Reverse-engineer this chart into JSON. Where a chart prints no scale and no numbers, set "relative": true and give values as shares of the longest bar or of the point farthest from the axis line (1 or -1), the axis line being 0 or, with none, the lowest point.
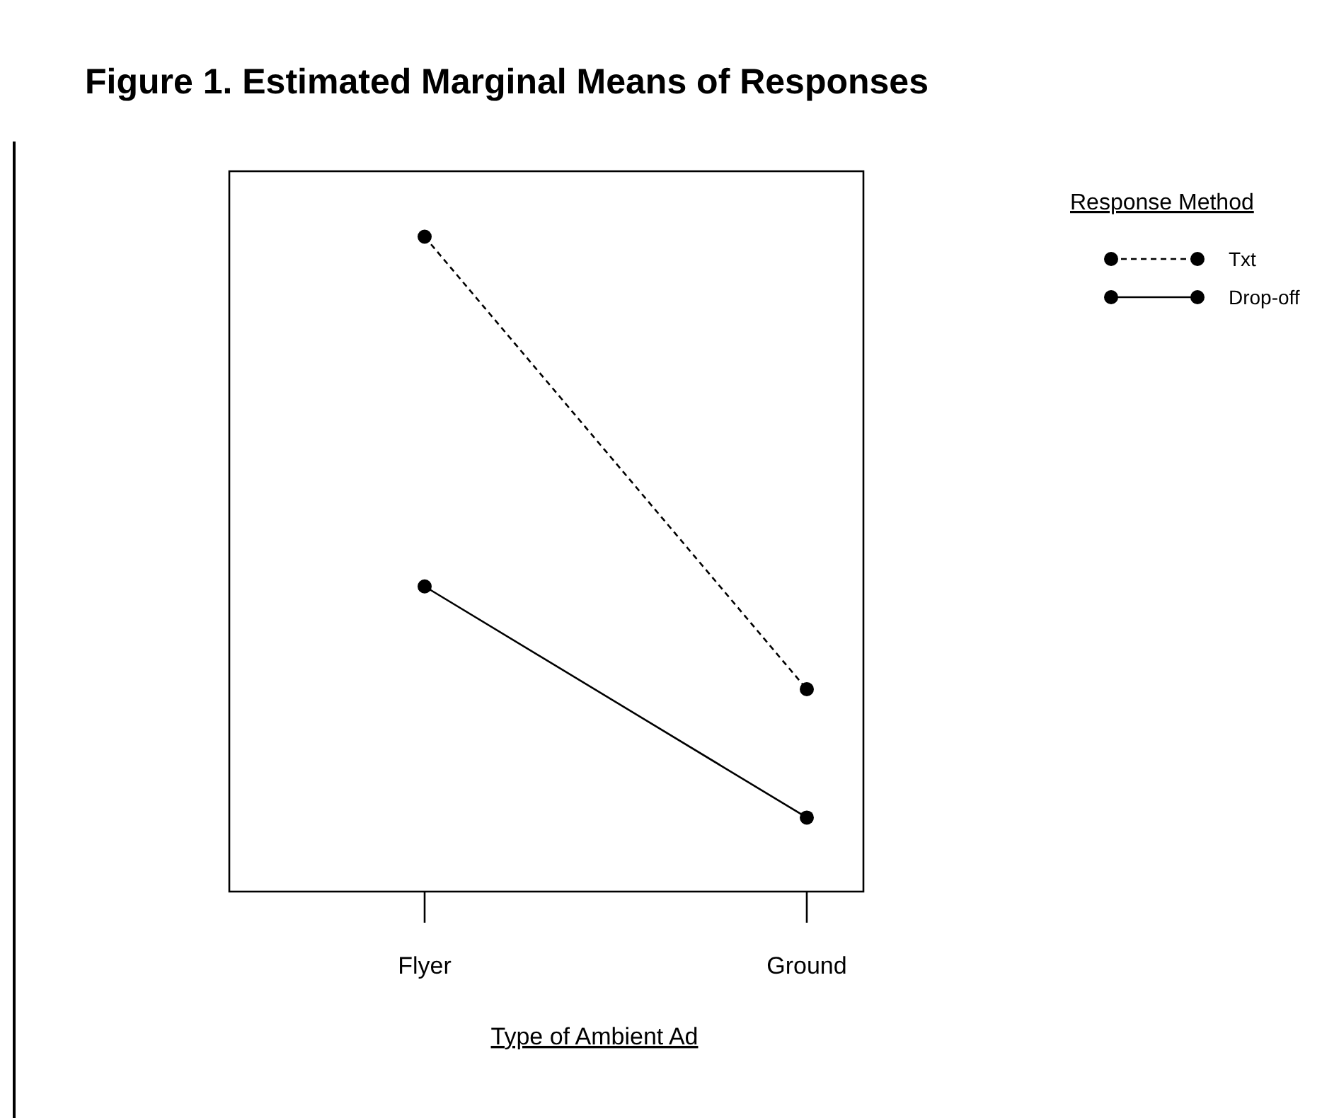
{
  "chart_data": {
    "type": "line",
    "title": "Figure 1. Estimated Marginal Means of Responses",
    "xlabel": "Type of Ambient Ad",
    "legend_title": "Response Method",
    "categories": [
      "Flyer",
      "Ground"
    ],
    "relative": true,
    "marker": "circle",
    "legend": "top right",
    "series": [
      {
        "name": "Txt",
        "color": "#000000",
        "line_style": "dashed",
        "values": [
          1,
          0.309
        ]
      },
      {
        "name": "Drop-off",
        "color": "#000000",
        "line_style": "solid",
        "values": [
          0.466,
          0.113
        ]
      }
    ]
  }
}
